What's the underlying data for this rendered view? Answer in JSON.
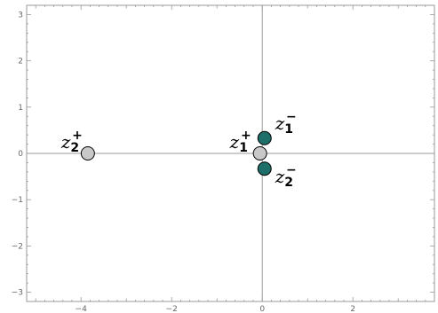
{
  "chart_data": {
    "type": "scatter",
    "title": "",
    "xlabel": "",
    "ylabel": "",
    "xlim": [
      -5.2,
      3.8
    ],
    "ylim": [
      -3.2,
      3.2
    ],
    "x_ticks": [
      -4,
      -2,
      0,
      2
    ],
    "x_tick_labels": [
      "−4",
      "−2",
      "0",
      "2"
    ],
    "y_ticks": [
      -3,
      -2,
      -1,
      0,
      1,
      2,
      3
    ],
    "y_tick_labels": [
      "−3",
      "−2",
      "−1",
      "0",
      "1",
      "2",
      "3"
    ],
    "grid": false,
    "colors": {
      "gray_point": "#c8c8c8",
      "green_point": "#1e6e6a",
      "axis": "#999999",
      "frame": "#999999"
    },
    "series": [
      {
        "name": "",
        "color": "#c8c8c8",
        "points": [
          {
            "x": -3.85,
            "y": 0.0,
            "label": "z",
            "sub": "2",
            "sup": "+"
          },
          {
            "x": -0.05,
            "y": 0.0,
            "label": "z",
            "sub": "1",
            "sup": "+"
          }
        ]
      },
      {
        "name": "",
        "color": "#1e6e6a",
        "points": [
          {
            "x": 0.05,
            "y": 0.33,
            "label": "z",
            "sub": "1",
            "sup": "−"
          },
          {
            "x": 0.05,
            "y": -0.33,
            "label": "z",
            "sub": "2",
            "sup": "−"
          }
        ]
      }
    ]
  }
}
